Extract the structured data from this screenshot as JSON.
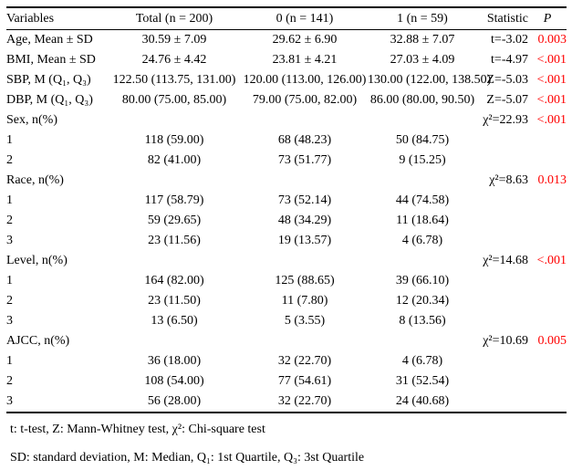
{
  "table": {
    "columns": [
      "Variables",
      "Total (n = 200)",
      "0 (n = 141)",
      "1 (n = 59)",
      "Statistic",
      "P"
    ],
    "rows": [
      {
        "label": "Age, Mean ± SD",
        "indent": false,
        "total": "30.59 ± 7.09",
        "group0": "29.62 ± 6.90",
        "group1": "32.88 ± 7.07",
        "statistic": "t=-3.02",
        "p": "0.003"
      },
      {
        "label": "BMI, Mean ± SD",
        "indent": false,
        "total": "24.76 ± 4.42",
        "group0": "23.81 ± 4.21",
        "group1": "27.03 ± 4.09",
        "statistic": "t=-4.97",
        "p": "<.001"
      },
      {
        "label": "SBP, M (Q₁, Q₃)",
        "indent": false,
        "total": "122.50 (113.75, 131.00)",
        "group0": "120.00 (113.00, 126.00)",
        "group1": "130.00 (122.00, 138.50)",
        "statistic": "Z=-5.03",
        "p": "<.001"
      },
      {
        "label": "DBP, M (Q₁, Q₃)",
        "indent": false,
        "total": "80.00 (75.00, 85.00)",
        "group0": "79.00 (75.00, 82.00)",
        "group1": "86.00 (80.00, 90.50)",
        "statistic": "Z=-5.07",
        "p": "<.001"
      },
      {
        "label": "Sex, n(%)",
        "indent": false,
        "total": "",
        "group0": "",
        "group1": "",
        "statistic": "χ²=22.93",
        "p": "<.001"
      },
      {
        "label": "1",
        "indent": true,
        "total": "118 (59.00)",
        "group0": "68 (48.23)",
        "group1": "50 (84.75)",
        "statistic": "",
        "p": ""
      },
      {
        "label": "2",
        "indent": true,
        "total": "82 (41.00)",
        "group0": "73 (51.77)",
        "group1": "9 (15.25)",
        "statistic": "",
        "p": ""
      },
      {
        "label": "Race, n(%)",
        "indent": false,
        "total": "",
        "group0": "",
        "group1": "",
        "statistic": "χ²=8.63",
        "p": "0.013"
      },
      {
        "label": "1",
        "indent": true,
        "total": "117 (58.79)",
        "group0": "73 (52.14)",
        "group1": "44 (74.58)",
        "statistic": "",
        "p": ""
      },
      {
        "label": "2",
        "indent": true,
        "total": "59 (29.65)",
        "group0": "48 (34.29)",
        "group1": "11 (18.64)",
        "statistic": "",
        "p": ""
      },
      {
        "label": "3",
        "indent": true,
        "total": "23 (11.56)",
        "group0": "19 (13.57)",
        "group1": "4 (6.78)",
        "statistic": "",
        "p": ""
      },
      {
        "label": "Level, n(%)",
        "indent": false,
        "total": "",
        "group0": "",
        "group1": "",
        "statistic": "χ²=14.68",
        "p": "<.001"
      },
      {
        "label": "1",
        "indent": true,
        "total": "164 (82.00)",
        "group0": "125 (88.65)",
        "group1": "39 (66.10)",
        "statistic": "",
        "p": ""
      },
      {
        "label": "2",
        "indent": true,
        "total": "23 (11.50)",
        "group0": "11 (7.80)",
        "group1": "12 (20.34)",
        "statistic": "",
        "p": ""
      },
      {
        "label": "3",
        "indent": true,
        "total": "13 (6.50)",
        "group0": "5 (3.55)",
        "group1": "8 (13.56)",
        "statistic": "",
        "p": ""
      },
      {
        "label": "AJCC, n(%)",
        "indent": false,
        "total": "",
        "group0": "",
        "group1": "",
        "statistic": "χ²=10.69",
        "p": "0.005"
      },
      {
        "label": "1",
        "indent": true,
        "total": "36 (18.00)",
        "group0": "32 (22.70)",
        "group1": "4 (6.78)",
        "statistic": "",
        "p": ""
      },
      {
        "label": "2",
        "indent": true,
        "total": "108 (54.00)",
        "group0": "77 (54.61)",
        "group1": "31 (52.54)",
        "statistic": "",
        "p": ""
      },
      {
        "label": "3",
        "indent": true,
        "total": "56 (28.00)",
        "group0": "32 (22.70)",
        "group1": "24 (40.68)",
        "statistic": "",
        "p": ""
      }
    ]
  },
  "footnotes": [
    "t: t-test, Z: Mann-Whitney test, χ²: Chi-square test",
    "SD: standard deviation, M: Median, Q₁: 1st Quartile, Q₃: 3st Quartile"
  ],
  "colors": {
    "p_value_red": "#ff0000",
    "text": "#000000",
    "background": "#ffffff"
  }
}
